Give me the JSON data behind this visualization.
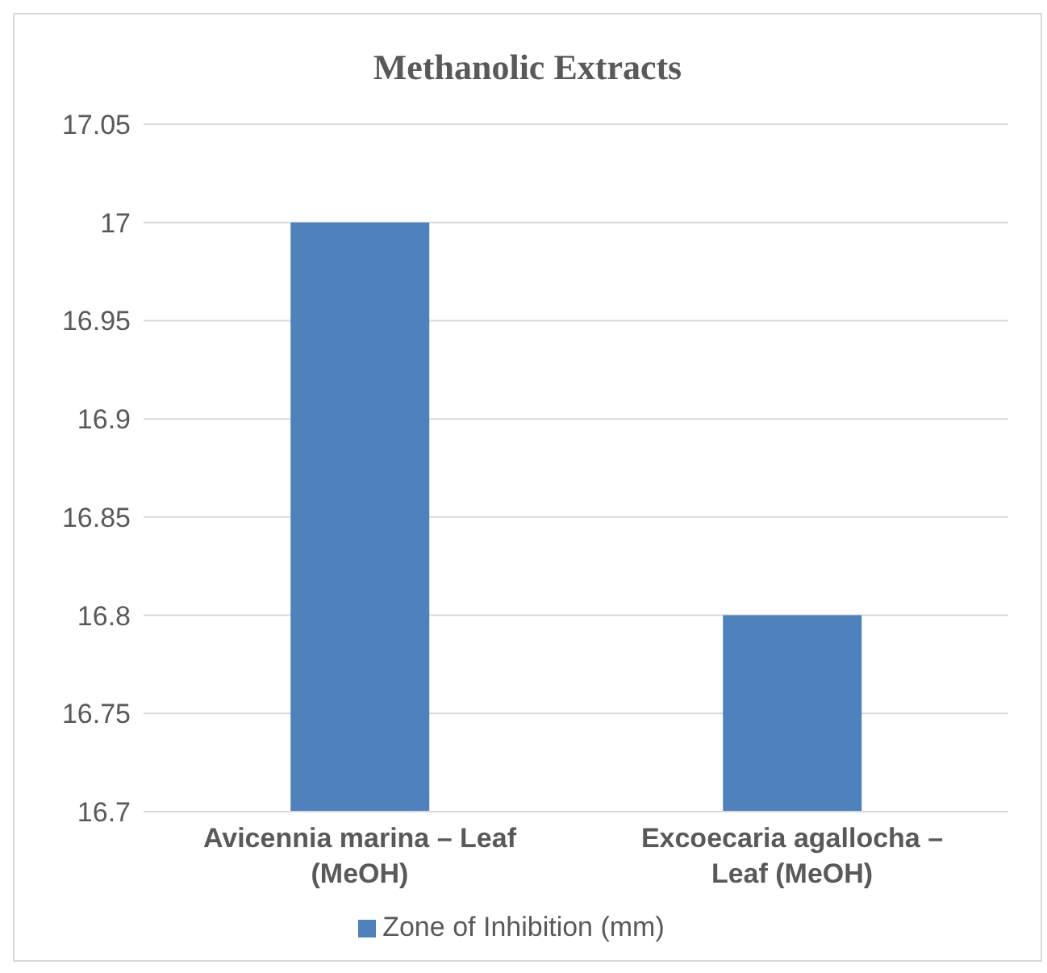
{
  "chart_data": {
    "type": "bar",
    "title": "Methanolic Extracts",
    "categories": [
      "Avicennia marina – Leaf (MeOH)",
      "Excoecaria agallocha – Leaf (MeOH)"
    ],
    "series": [
      {
        "name": "Zone of Inhibition (mm)",
        "color": "#4f81bd",
        "values": [
          17,
          16.8
        ]
      }
    ],
    "ylim": [
      16.7,
      17.05
    ],
    "yticks": [
      16.7,
      16.75,
      16.8,
      16.85,
      16.9,
      16.95,
      17,
      17.05
    ],
    "grid": "y",
    "legend": "bottom"
  }
}
